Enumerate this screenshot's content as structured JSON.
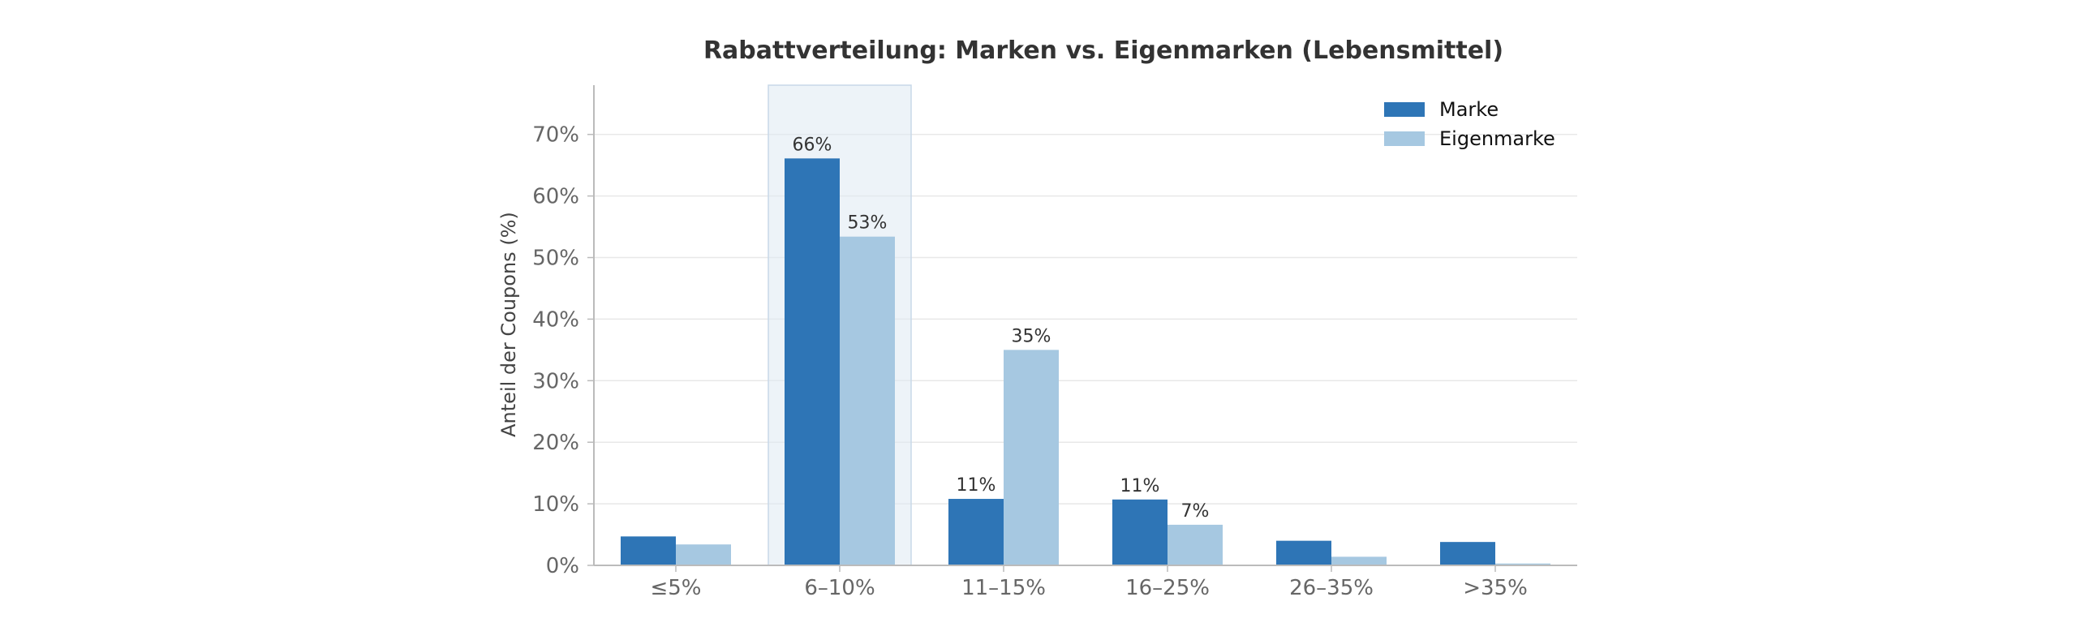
{
  "chart_data": {
    "type": "bar",
    "title": "Rabattverteilung: Marken vs. Eigenmarken (Lebensmittel)",
    "xlabel": "",
    "ylabel": "Anteil der Coupons (%)",
    "categories": [
      "≤5%",
      "6–10%",
      "11–15%",
      "16–25%",
      "26–35%",
      ">35%"
    ],
    "series": [
      {
        "name": "Marke",
        "color": "#2e75b6",
        "values": [
          4.7,
          66.1,
          10.8,
          10.7,
          4.0,
          3.8
        ]
      },
      {
        "name": "Eigenmarke",
        "color": "#a6c8e1",
        "values": [
          3.4,
          53.4,
          35.0,
          6.6,
          1.4,
          0.3
        ]
      }
    ],
    "data_labels": [
      {
        "series": 0,
        "category": 1,
        "text": "66%"
      },
      {
        "series": 1,
        "category": 1,
        "text": "53%"
      },
      {
        "series": 0,
        "category": 2,
        "text": "11%"
      },
      {
        "series": 1,
        "category": 2,
        "text": "35%"
      },
      {
        "series": 0,
        "category": 3,
        "text": "11%"
      },
      {
        "series": 1,
        "category": 3,
        "text": "7%"
      }
    ],
    "highlight_category": 1,
    "yticks": [
      0,
      10,
      20,
      30,
      40,
      50,
      60,
      70
    ],
    "ytick_labels": [
      "0%",
      "10%",
      "20%",
      "30%",
      "40%",
      "50%",
      "60%",
      "70%"
    ],
    "ylim": [
      0,
      78
    ],
    "grid": true,
    "legend_position": "top-right"
  }
}
